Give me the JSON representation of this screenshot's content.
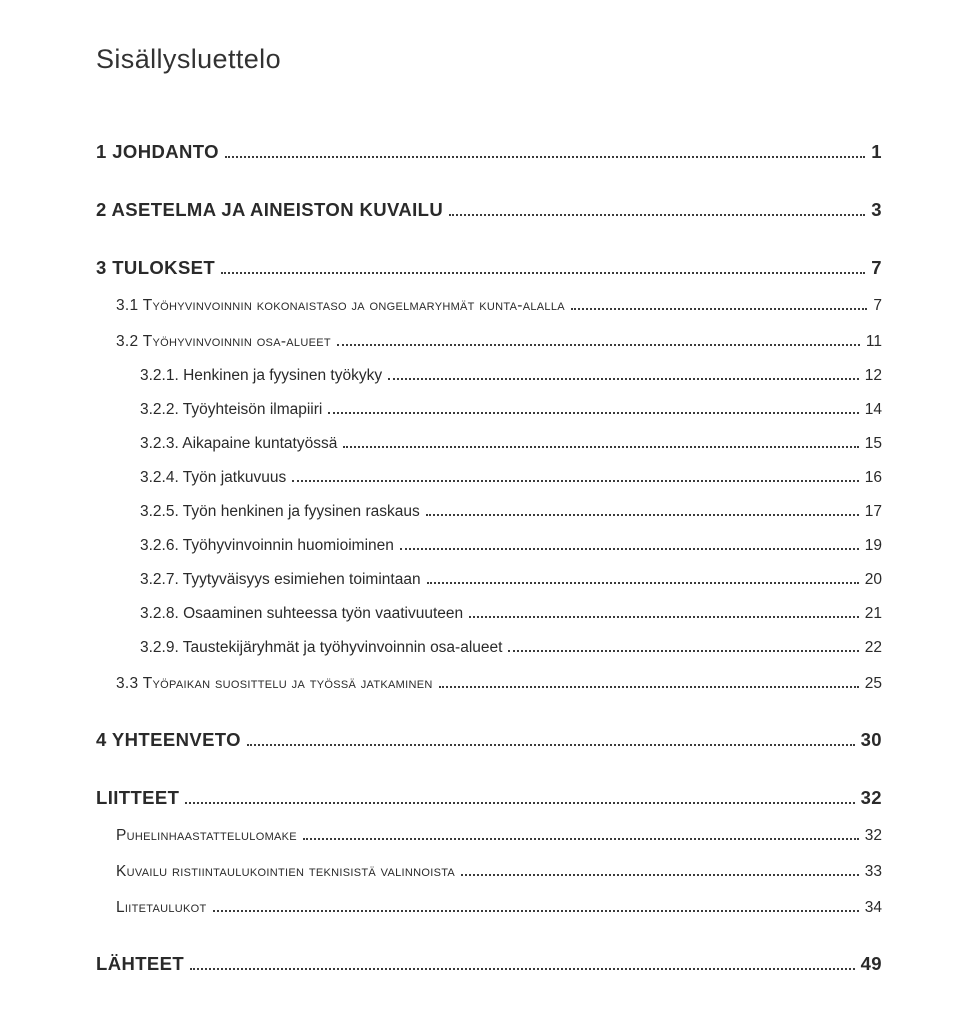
{
  "title": "Sisällysluettelo",
  "colors": {
    "text": "#2a2a2a",
    "background": "#ffffff",
    "dot": "#3a3a3a"
  },
  "typography": {
    "title_fontsize_pt": 20,
    "lvl1_fontsize_pt": 14,
    "lvl2_fontsize_pt": 12,
    "lvl3_fontsize_pt": 12,
    "font_family": "Verdana"
  },
  "toc": [
    {
      "level": 1,
      "label": "1 JOHDANTO",
      "page": "1"
    },
    {
      "level": 1,
      "label": "2 ASETELMA JA AINEISTON KUVAILU",
      "page": "3"
    },
    {
      "level": 1,
      "label": "3 TULOKSET",
      "page": "7"
    },
    {
      "level": 2,
      "label": "3.1 Työhyvinvoinnin kokonaistaso ja ongelmaryhmät kunta-alalla",
      "page": "7"
    },
    {
      "level": 2,
      "label": "3.2 Työhyvinvoinnin osa-alueet",
      "page": "11"
    },
    {
      "level": 3,
      "label": "3.2.1. Henkinen ja fyysinen työkyky",
      "page": "12"
    },
    {
      "level": 3,
      "label": "3.2.2. Työyhteisön ilmapiiri",
      "page": "14"
    },
    {
      "level": 3,
      "label": "3.2.3. Aikapaine kuntatyössä",
      "page": "15"
    },
    {
      "level": 3,
      "label": "3.2.4. Työn jatkuvuus",
      "page": "16"
    },
    {
      "level": 3,
      "label": "3.2.5. Työn henkinen ja fyysinen raskaus",
      "page": "17"
    },
    {
      "level": 3,
      "label": "3.2.6. Työhyvinvoinnin huomioiminen",
      "page": "19"
    },
    {
      "level": 3,
      "label": "3.2.7. Tyytyväisyys esimiehen toimintaan",
      "page": "20"
    },
    {
      "level": 3,
      "label": "3.2.8. Osaaminen suhteessa työn vaativuuteen",
      "page": "21"
    },
    {
      "level": 3,
      "label": "3.2.9. Taustekijäryhmät ja työhyvinvoinnin osa-alueet",
      "page": "22"
    },
    {
      "level": 2,
      "label": "3.3 Työpaikan suosittelu ja työssä jatkaminen",
      "page": "25"
    },
    {
      "level": 1,
      "label": "4 YHTEENVETO",
      "page": "30"
    },
    {
      "level": 1,
      "label": "LIITTEET",
      "page": "32"
    },
    {
      "level": 2,
      "label": "Puhelinhaastattelulomake",
      "page": "32"
    },
    {
      "level": 2,
      "label": "Kuvailu ristiintaulukointien teknisistä valinnoista",
      "page": "33"
    },
    {
      "level": 2,
      "label": "Liitetaulukot",
      "page": "34"
    },
    {
      "level": 1,
      "label": "LÄHTEET",
      "page": "49"
    }
  ]
}
